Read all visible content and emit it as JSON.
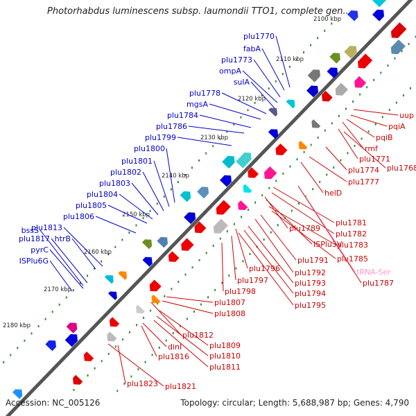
{
  "header": {
    "title": "Photorhabdus luminescens subsp. laumondii TTO1, complete gen..."
  },
  "footer": {
    "accession": "Accession: NC_005126",
    "summary": "Topology: circular; Length: 5,688,987 bp; Genes: 4,790"
  },
  "colors": {
    "backbone": "#777777",
    "forward_label": "#0000cc",
    "reverse_label": "#cc0000",
    "trna_label": "#ff99cc",
    "tick": "#2e8b2e"
  },
  "scale_marks": [
    "2100 kbp",
    "2110 kbp",
    "2120 kbp",
    "2130 kbp",
    "2140 kbp",
    "2150 kbp",
    "2160 kbp",
    "2170 kbp",
    "2180 kbp"
  ],
  "forward_genes": [
    "plu1770",
    "fabA",
    "plu1773",
    "ompA",
    "sulA",
    "plu1778",
    "mgsA",
    "plu1784",
    "plu1786",
    "plu1799",
    "plu1800",
    "plu1801",
    "plu1802",
    "plu1803",
    "plu1804",
    "plu1805",
    "plu1806",
    "plu1813",
    "htrB",
    "bssS",
    "plu1817",
    "pyrC",
    "ISPlu6G"
  ],
  "reverse_genes": [
    "uup",
    "pqiA",
    "pqiB",
    "rmf",
    "plu1771",
    "plu1768",
    "plu1774",
    "plu1777",
    "helD",
    "plu1781",
    "plu1782",
    "plu1789",
    "ISPlu3V",
    "plu1783",
    "plu1785",
    "plu1791",
    "plu1792",
    "plu1796",
    "plu1797",
    "plu1793",
    "plu1798",
    "plu1794",
    "plu1795",
    "plu1787",
    "plu1807",
    "plu1808",
    "plu1812",
    "plu1809",
    "dinI",
    "plu1810",
    "plu1816",
    "plu1811",
    "plu1823",
    "plu1821"
  ],
  "rna_genes": [
    "tRNA-Ser"
  ]
}
